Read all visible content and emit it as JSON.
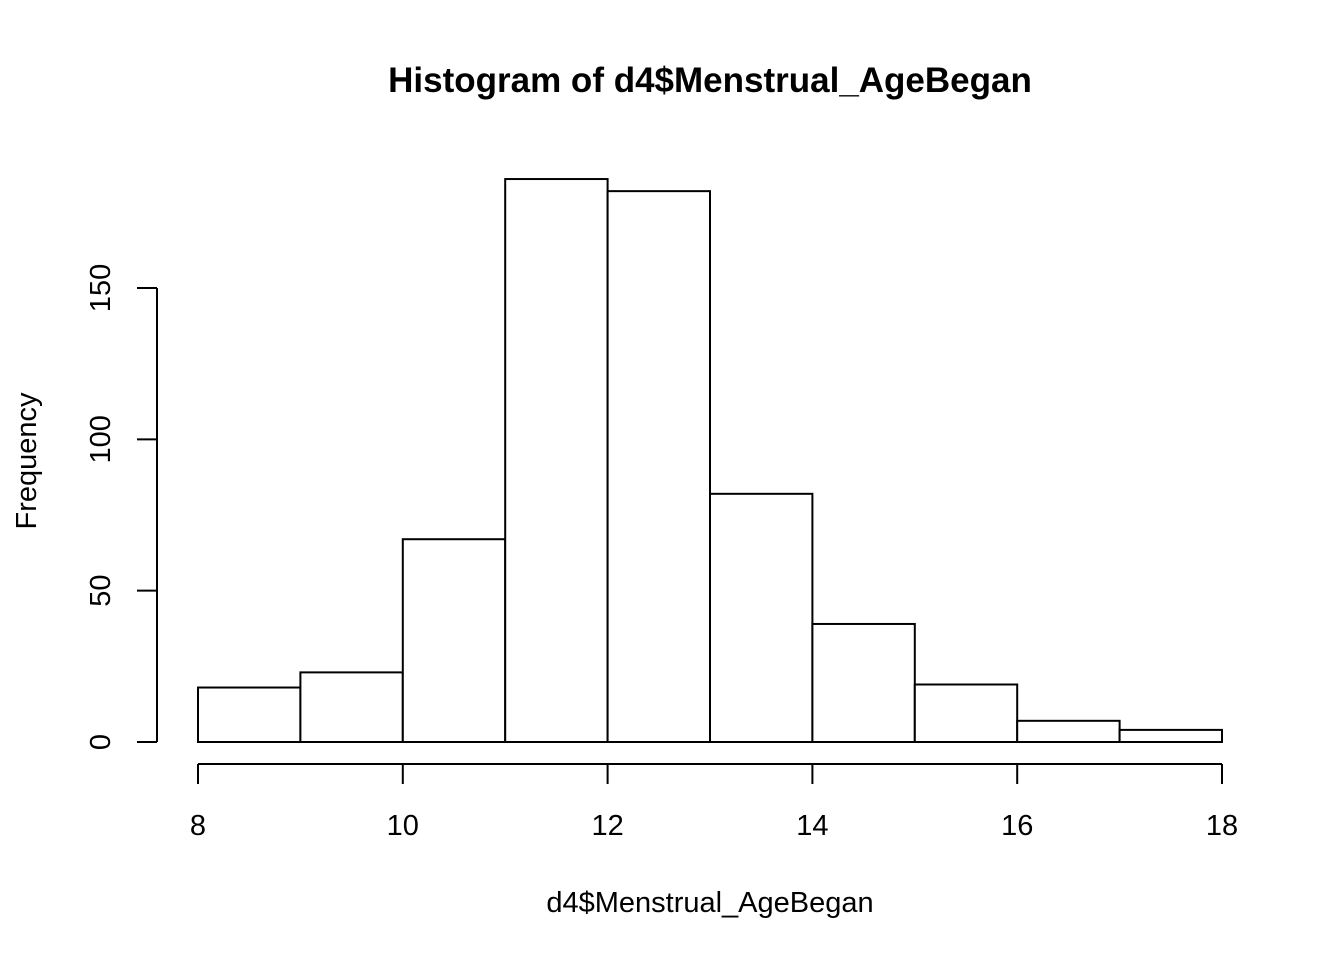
{
  "chart_data": {
    "type": "bar",
    "title": "Histogram of d4$Menstrual_AgeBegan",
    "xlabel": "d4$Menstrual_AgeBegan",
    "ylabel": "Frequency",
    "bins": [
      {
        "from": 8,
        "to": 9,
        "value": 18
      },
      {
        "from": 9,
        "to": 10,
        "value": 23
      },
      {
        "from": 10,
        "to": 11,
        "value": 67
      },
      {
        "from": 11,
        "to": 12,
        "value": 186
      },
      {
        "from": 12,
        "to": 13,
        "value": 182
      },
      {
        "from": 13,
        "to": 14,
        "value": 82
      },
      {
        "from": 14,
        "to": 15,
        "value": 39
      },
      {
        "from": 15,
        "to": 16,
        "value": 19
      },
      {
        "from": 16,
        "to": 17,
        "value": 7
      },
      {
        "from": 17,
        "to": 18,
        "value": 4
      }
    ],
    "xlim": [
      8,
      18
    ],
    "ylim": [
      0,
      186
    ],
    "xticks": [
      8,
      10,
      12,
      14,
      16,
      18
    ],
    "yticks": [
      0,
      50,
      100,
      150
    ],
    "grid": false,
    "legend": "none"
  }
}
